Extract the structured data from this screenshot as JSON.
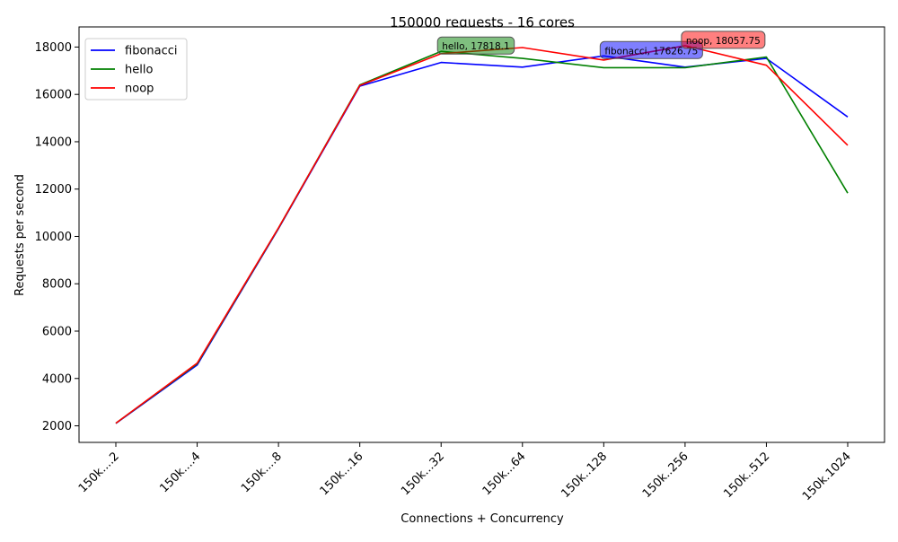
{
  "chart_data": {
    "type": "line",
    "title": "150000 requests - 16 cores",
    "xlabel": "Connections + Concurrency",
    "ylabel": "Requests per second",
    "categories": [
      "150k....2",
      "150k....4",
      "150k....8",
      "150k...16",
      "150k...32",
      "150k...64",
      "150k..128",
      "150k..256",
      "150k..512",
      "150k.1024"
    ],
    "ylim": [
      1300,
      18850
    ],
    "yticks": [
      2000,
      4000,
      6000,
      8000,
      10000,
      12000,
      14000,
      16000,
      18000
    ],
    "grid": false,
    "legend_position": "top-left",
    "series": [
      {
        "name": "fibonacci",
        "color": "#0000ff",
        "values": [
          2100,
          4570,
          10330,
          16350,
          17350,
          17150,
          17626.75,
          17150,
          17520,
          15050
        ]
      },
      {
        "name": "hello",
        "color": "#008000",
        "values": [
          2110,
          4620,
          10350,
          16400,
          17818.1,
          17520,
          17130,
          17130,
          17580,
          11830
        ]
      },
      {
        "name": "noop",
        "color": "#ff0000",
        "values": [
          2110,
          4650,
          10360,
          16380,
          17720,
          17980,
          17450,
          18057.75,
          17230,
          13850
        ]
      }
    ],
    "annotations": [
      {
        "series": "hello",
        "text": "hello, 17818.1",
        "category_index": 4,
        "value": 17818.1,
        "color": "#008000"
      },
      {
        "series": "fibonacci",
        "text": "fibonacci, 17626.75",
        "category_index": 6,
        "value": 17626.75,
        "color": "#0000ff"
      },
      {
        "series": "noop",
        "text": "noop, 18057.75",
        "category_index": 7,
        "value": 18057.75,
        "color": "#ff0000"
      }
    ]
  }
}
